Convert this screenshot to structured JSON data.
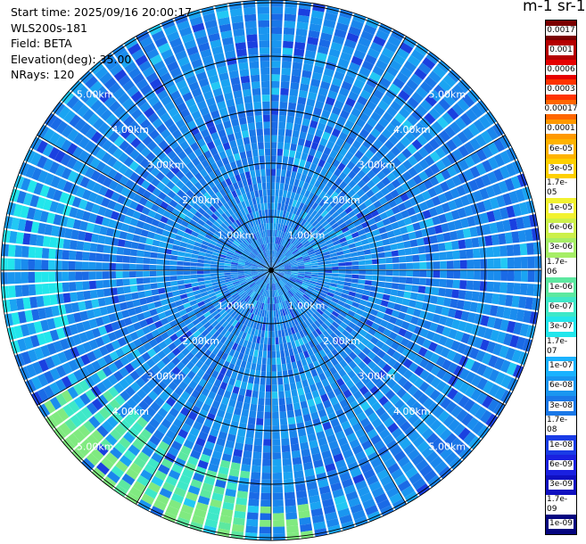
{
  "header": {
    "start_time": "Start time: 2025/09/16 20:00:17",
    "instrument": "WLS200s-181",
    "field": "Field: BETA",
    "elevation": "Elevation(deg): 35.00",
    "nrays": "NRays: 120"
  },
  "colorbar": {
    "units_label": "m-1 sr-1",
    "labels": [
      "0.0017",
      "0.001",
      "0.0006",
      "0.0003",
      "0.00017",
      "0.0001",
      "6e-05",
      "3e-05",
      "1.7e-05",
      "1e-05",
      "6e-06",
      "3e-06",
      "1.7e-06",
      "1e-06",
      "6e-07",
      "3e-07",
      "1.7e-07",
      "1e-07",
      "6e-08",
      "3e-08",
      "1.7e-08",
      "1e-08",
      "6e-09",
      "3e-09",
      "1.7e-09",
      "1e-09"
    ],
    "colors": [
      "#7a0000",
      "#b50000",
      "#e60000",
      "#ff3300",
      "#ff6600",
      "#ff9900",
      "#ffb300",
      "#ffd000",
      "#ffe600",
      "#f2f230",
      "#ccf04a",
      "#a6ee66",
      "#80ea80",
      "#5ce8a0",
      "#3ee8c8",
      "#22e6ec",
      "#1ad0ff",
      "#1ab2ff",
      "#1a96f0",
      "#1a78e8",
      "#1a5ae6",
      "#1a3ce6",
      "#1a20e0",
      "#1010c0",
      "#0a0aa0",
      "#050580"
    ]
  },
  "range_rings": {
    "labels": [
      "1.00km",
      "2.00km",
      "3.00km",
      "4.00km",
      "5.00km"
    ],
    "max_range_km": 5.2
  }
}
